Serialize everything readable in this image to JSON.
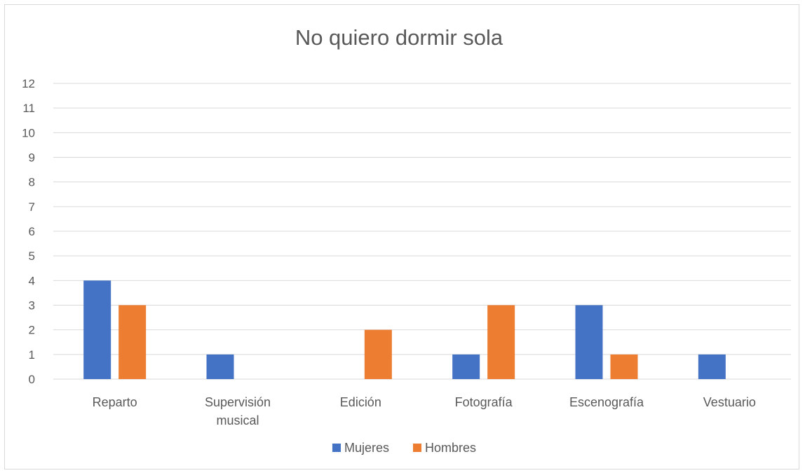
{
  "chart_data": {
    "type": "bar",
    "title": "No quiero dormir sola",
    "categories": [
      [
        "Reparto"
      ],
      [
        "Supervisión",
        "musical"
      ],
      [
        "Edición"
      ],
      [
        "Fotografía"
      ],
      [
        "Escenografía"
      ],
      [
        "Vestuario"
      ]
    ],
    "series": [
      {
        "name": "Mujeres",
        "color": "#4472C4",
        "values": [
          4,
          1,
          0,
          1,
          3,
          1
        ]
      },
      {
        "name": "Hombres",
        "color": "#ED7D31",
        "values": [
          3,
          0,
          2,
          3,
          1,
          0
        ]
      }
    ],
    "ylim": [
      0,
      12
    ],
    "yticks": [
      0,
      1,
      2,
      3,
      4,
      5,
      6,
      7,
      8,
      9,
      10,
      11,
      12
    ],
    "grid": true,
    "gridColor": "#d9d9d9",
    "legend": "bottom"
  }
}
